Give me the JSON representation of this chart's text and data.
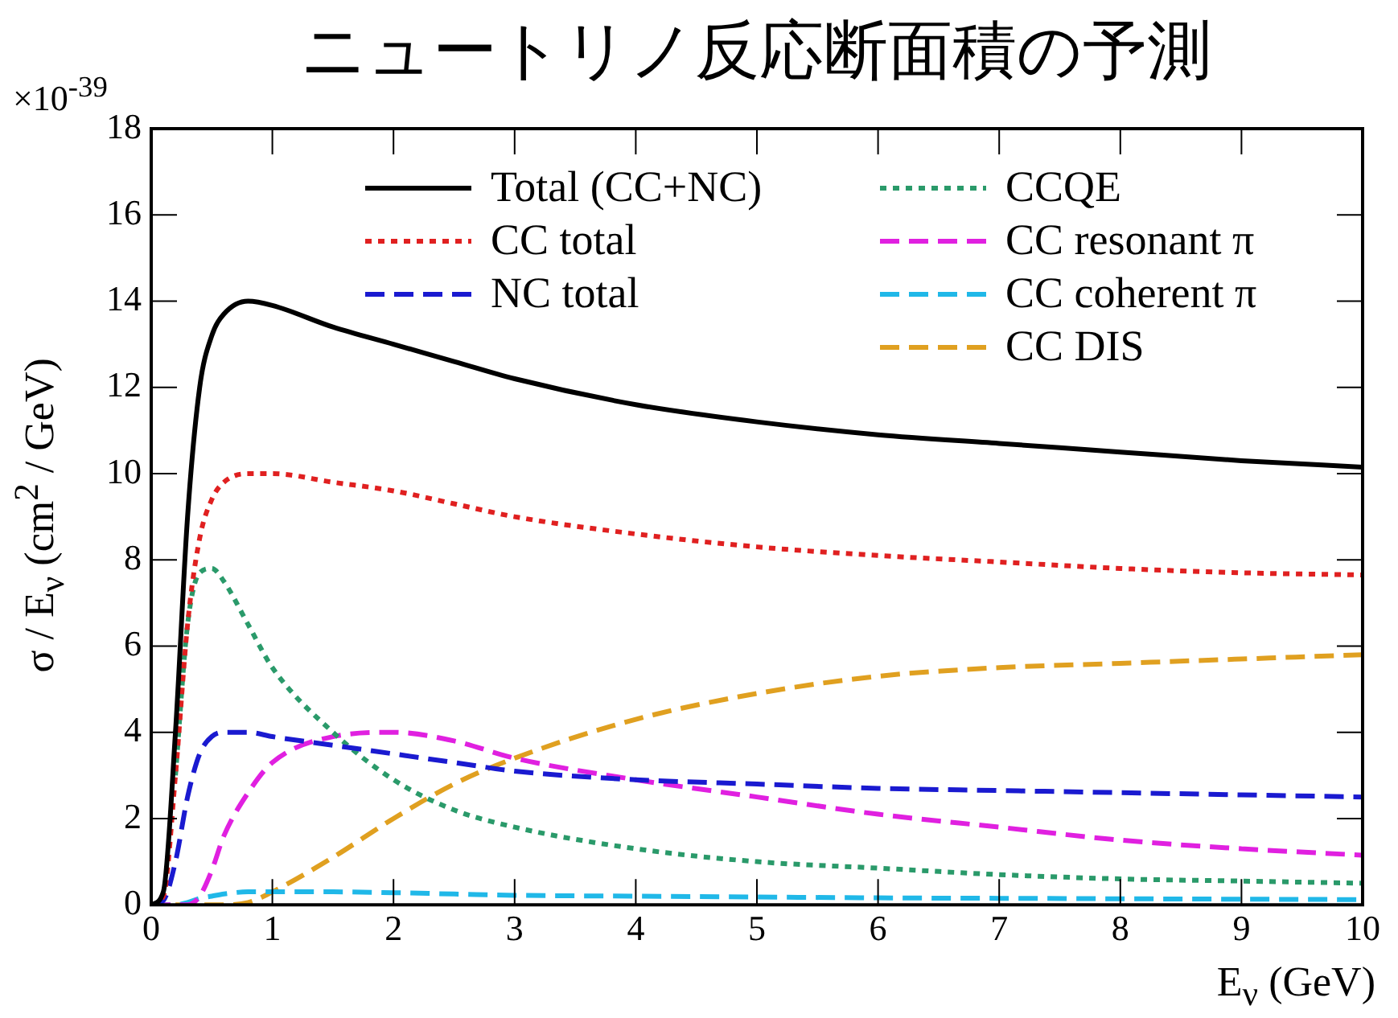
{
  "chart_data": {
    "type": "line",
    "title": "ニュートリノ反応断面積の予測",
    "xlabel": "E$_{ν}$ (GeV)",
    "ylabel": "σ / E$_{ν}$ (cm$^{2}$ / GeV)",
    "annotations": [
      "×10$^{-39}$"
    ],
    "x": [
      0,
      0.1,
      0.2,
      0.3,
      0.4,
      0.5,
      0.6,
      0.8,
      1,
      1.5,
      2,
      2.5,
      3,
      4,
      5,
      6,
      7,
      8,
      9,
      10
    ],
    "series": [
      {
        "name": "Total (CC+NC)",
        "color": "#000000",
        "line_style": "solid",
        "values": [
          0,
          0.3,
          4,
          9,
          12,
          13.2,
          13.7,
          14,
          13.9,
          13.4,
          13,
          12.6,
          12.2,
          11.6,
          11.2,
          10.9,
          10.7,
          10.5,
          10.3,
          10.15
        ]
      },
      {
        "name": "CC total",
        "color": "#e02020",
        "line_style": "dotted",
        "values": [
          0,
          0.2,
          3,
          6.5,
          8.5,
          9.4,
          9.8,
          10,
          10,
          9.8,
          9.6,
          9.3,
          9,
          8.6,
          8.3,
          8.1,
          7.95,
          7.8,
          7.7,
          7.65
        ]
      },
      {
        "name": "NC total",
        "color": "#1a1ad0",
        "line_style": "dashed",
        "values": [
          0,
          0.1,
          1,
          2.5,
          3.5,
          3.9,
          4,
          4,
          3.9,
          3.7,
          3.5,
          3.3,
          3.1,
          2.9,
          2.8,
          2.7,
          2.65,
          2.6,
          2.55,
          2.5
        ]
      },
      {
        "name": "CCQE",
        "color": "#2a9a6a",
        "line_style": "dotted",
        "values": [
          null,
          null,
          3,
          6.5,
          7.7,
          7.8,
          7.5,
          6.5,
          5.5,
          4,
          2.9,
          2.2,
          1.8,
          1.3,
          1,
          0.85,
          0.7,
          0.6,
          0.55,
          0.5
        ]
      },
      {
        "name": "CC resonant π",
        "color": "#e020e0",
        "line_style": "dashed",
        "values": [
          0,
          0,
          0,
          0,
          0.2,
          0.8,
          1.6,
          2.6,
          3.3,
          3.9,
          4,
          3.8,
          3.4,
          2.9,
          2.5,
          2.1,
          1.8,
          1.5,
          1.3,
          1.15
        ]
      },
      {
        "name": "CC coherent π",
        "color": "#20b8e8",
        "line_style": "dashed",
        "values": [
          0,
          0,
          0,
          0.05,
          0.15,
          0.2,
          0.25,
          0.3,
          0.3,
          0.3,
          0.28,
          0.25,
          0.22,
          0.2,
          0.18,
          0.16,
          0.15,
          0.14,
          0.13,
          0.12
        ]
      },
      {
        "name": "CC DIS",
        "color": "#e0a020",
        "line_style": "dashed",
        "values": [
          null,
          null,
          0,
          0,
          0,
          0,
          0,
          0.05,
          0.3,
          1.1,
          2,
          2.8,
          3.4,
          4.3,
          4.9,
          5.3,
          5.5,
          5.6,
          5.7,
          5.8
        ]
      }
    ],
    "xlim": [
      0,
      10
    ],
    "xticks": [
      0,
      1,
      2,
      3,
      4,
      5,
      6,
      7,
      8,
      9,
      10
    ],
    "ylim": [
      0,
      18
    ],
    "yticks": [
      0,
      2,
      4,
      6,
      8,
      10,
      12,
      14,
      16,
      18
    ],
    "grid": false,
    "legend": "top",
    "marker": "none"
  }
}
